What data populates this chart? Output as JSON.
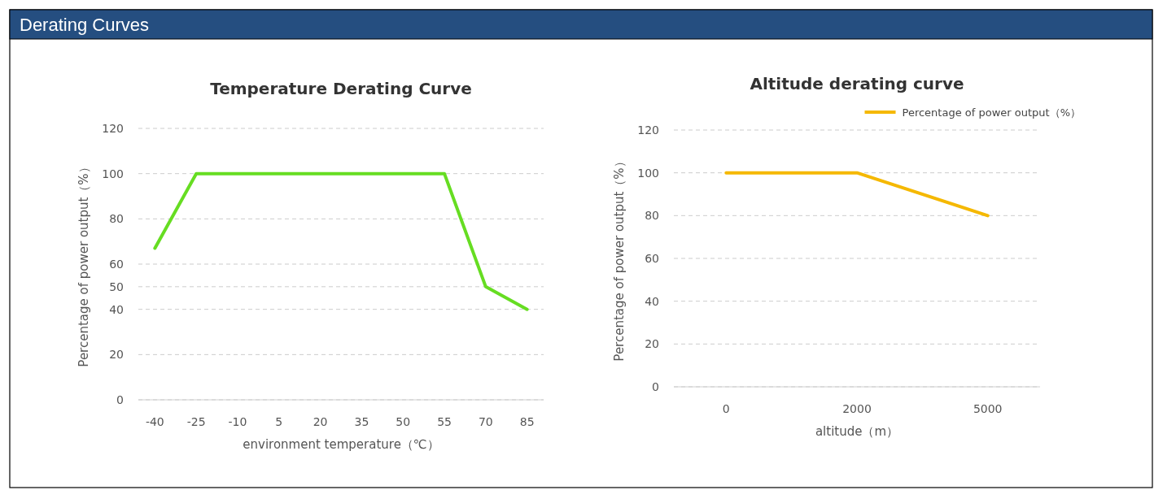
{
  "chart_data": [
    {
      "type": "line",
      "title": "Temperature Derating Curve",
      "annotations": [
        "Derating Curves"
      ],
      "xlabel": "environment temperature（℃）",
      "ylabel": "Percentage of power output（%）",
      "categories": [
        "-40",
        "-25",
        "-10",
        "5",
        "20",
        "35",
        "50",
        "55",
        "70",
        "85"
      ],
      "series": [
        {
          "color": "#66dd22",
          "values": [
            67,
            100,
            null,
            null,
            null,
            null,
            null,
            100,
            50,
            40
          ]
        }
      ],
      "ylim": [
        0,
        120
      ],
      "yticks": [
        0,
        20,
        40,
        50,
        60,
        80,
        100,
        120
      ],
      "grid": "y",
      "legend": false
    },
    {
      "type": "line",
      "title": "Altitude derating curve",
      "xlabel": "altitude（m）",
      "ylabel": "Percentage of power output（%）",
      "categories": [
        "0",
        "2000",
        "5000"
      ],
      "series": [
        {
          "name": "Percentage of power output（%）",
          "color": "#f5b800",
          "values": [
            100,
            100,
            80
          ]
        }
      ],
      "ylim": [
        0,
        120
      ],
      "yticks": [
        0,
        20,
        40,
        60,
        80,
        100,
        120
      ],
      "grid": "y",
      "legend": "top right"
    }
  ]
}
